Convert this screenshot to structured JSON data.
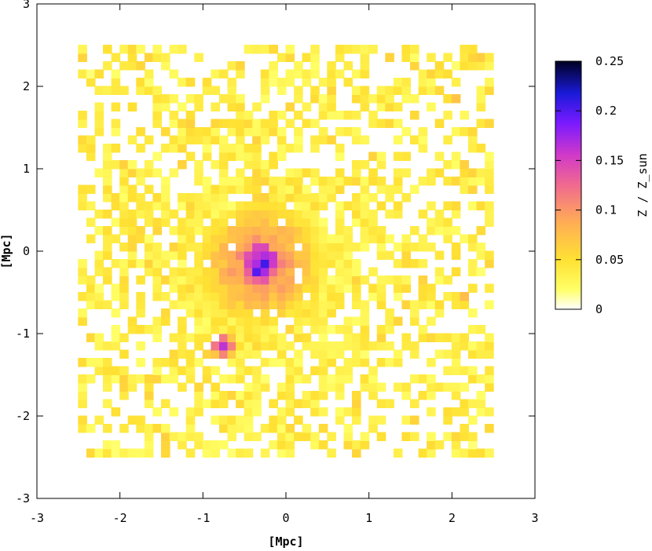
{
  "chart_data": {
    "type": "heatmap",
    "title": "",
    "xlabel": "[Mpc]",
    "ylabel": "[Mpc]",
    "xlim": [
      -3,
      3
    ],
    "ylim": [
      -3,
      3
    ],
    "x_ticks": [
      "-3",
      "-2",
      "-1",
      "0",
      "1",
      "2",
      "3"
    ],
    "y_ticks": [
      "-3",
      "-2",
      "-1",
      "0",
      "1",
      "2",
      "3"
    ],
    "grid": false,
    "colorbar": {
      "label": "Z / Z_sun",
      "range": [
        0,
        0.25
      ],
      "ticks": [
        "0",
        "0.05",
        "0.1",
        "0.15",
        "0.2",
        "0.25"
      ],
      "palette": [
        "#ffffff",
        "#ffff33",
        "#ffd24d",
        "#ff9966",
        "#e64db3",
        "#b31aff",
        "#1a1ae6",
        "#000033"
      ]
    },
    "map_extent": [
      -2.5,
      2.5
    ],
    "center_peak": {
      "x": -0.3,
      "y": -0.15,
      "value": 0.2
    },
    "features": [
      {
        "x": 1.6,
        "y": -0.5,
        "value": 0.07
      },
      {
        "x": 2.2,
        "y": -0.55,
        "value": 0.08
      },
      {
        "x": -1.5,
        "y": -2.3,
        "value": 0.08
      },
      {
        "x": -0.75,
        "y": -1.15,
        "value": 0.15
      },
      {
        "x": 0.7,
        "y": -2.5,
        "value": 0.08
      },
      {
        "x": 2.3,
        "y": -2.5,
        "value": 0.07
      },
      {
        "x": 2.3,
        "y": 2.35,
        "value": 0.07
      },
      {
        "x": 2.05,
        "y": 1.85,
        "value": 0.07
      },
      {
        "x": -1.1,
        "y": 1.55,
        "value": 0.06
      }
    ]
  }
}
